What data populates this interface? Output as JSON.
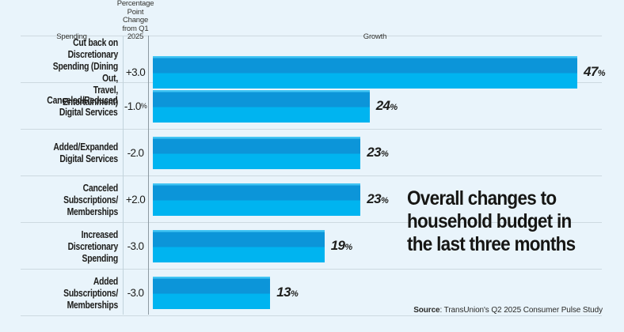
{
  "colors": {
    "background": "#e9f4fb",
    "bar_top": "#0c95d9",
    "bar_bottom": "#00b4f0",
    "bar_highlight": "#41c4f3",
    "separator": "#cdd9e0",
    "axis_line": "#8d9aa2",
    "text": "#1d1d1b"
  },
  "columns": {
    "spending": "Spending",
    "point_change": [
      "Percentage",
      "Point Change",
      "from Q1 2025"
    ],
    "growth": "Growth"
  },
  "chart_data": {
    "type": "bar",
    "orientation": "horizontal",
    "title": "Overall changes to household budget in the last three months",
    "title_lines": [
      "Overall changes to",
      "household budget in",
      "the last three months"
    ],
    "categories": [
      "Cut back on Discretionary Spending (Dining Out, Travel, Entertainment)",
      "Canceled/Reduced Digital Services",
      "Added/Expanded Digital Services",
      "Canceled Subscriptions/Memberships",
      "Increased Discretionary Spending",
      "Added Subscriptions/Memberships"
    ],
    "series": [
      {
        "name": "Percentage Point Change from Q1 2025",
        "values": [
          "+3.0",
          "-1.0%",
          "-2.0",
          "+2.0",
          "-3.0",
          "-3.0"
        ]
      },
      {
        "name": "Growth (%)",
        "values": [
          47,
          24,
          23,
          23,
          19,
          13
        ]
      }
    ],
    "xlim": [
      0,
      50
    ],
    "grid": false,
    "legend": false,
    "rows": [
      {
        "label": [
          "Cut back on Discretionary",
          "Spending (Dining Out,",
          "Travel, Entertainment)"
        ],
        "point_change": "+3.0",
        "point_change_suffix": "",
        "growth": 47,
        "growth_suffix": "%"
      },
      {
        "label": [
          "Canceled/Reduced",
          "Digital Services"
        ],
        "point_change": "-1.0",
        "point_change_suffix": "%",
        "growth": 24,
        "growth_suffix": "%"
      },
      {
        "label": [
          "Added/Expanded",
          "Digital Services"
        ],
        "point_change": "-2.0",
        "point_change_suffix": "",
        "growth": 23,
        "growth_suffix": "%"
      },
      {
        "label": [
          "Canceled Subscriptions/",
          "Memberships"
        ],
        "point_change": "+2.0",
        "point_change_suffix": "",
        "growth": 23,
        "growth_suffix": "%"
      },
      {
        "label": [
          "Increased Discretionary",
          "Spending"
        ],
        "point_change": "-3.0",
        "point_change_suffix": "",
        "growth": 19,
        "growth_suffix": "%"
      },
      {
        "label": [
          "Added Subscriptions/",
          "Memberships"
        ],
        "point_change": "-3.0",
        "point_change_suffix": "",
        "growth": 13,
        "growth_suffix": "%"
      }
    ]
  },
  "source": {
    "label": "Source",
    "rest": ": TransUnion's Q2 2025 Consumer Pulse Study"
  }
}
